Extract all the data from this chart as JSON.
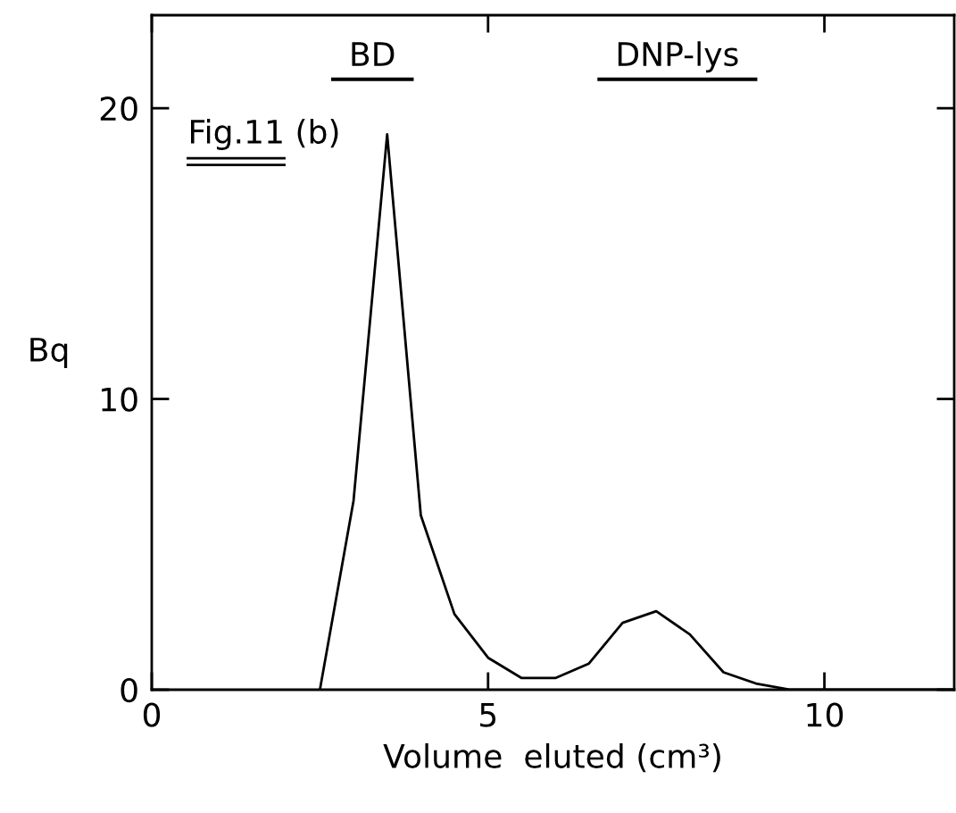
{
  "chart_data": {
    "type": "line",
    "xlabel": "Volume  eluted (cm³)",
    "ylabel": "Bq",
    "x": [
      2.5,
      3,
      3.5,
      4,
      4.5,
      5,
      5.5,
      6,
      6.5,
      7,
      7.5,
      8,
      8.5,
      9,
      9.5,
      10,
      11.9
    ],
    "series": [
      {
        "color": "#000000",
        "values": [
          0,
          6.5,
          19.1,
          6.0,
          2.6,
          1.1,
          0.4,
          0.4,
          0.9,
          2.3,
          2.7,
          1.9,
          0.6,
          0.2,
          0,
          0,
          0
        ]
      }
    ],
    "xlim": [
      0,
      11.93
    ],
    "ylim": [
      0,
      23.2
    ],
    "xticks": [
      0,
      5,
      10
    ],
    "yticks": [
      0,
      10,
      20
    ],
    "grid": false,
    "legend": false,
    "marker": "none",
    "line_style": "solid",
    "annotations": [
      "BD",
      "DNP-lys",
      "Fig.11 (b)"
    ]
  }
}
